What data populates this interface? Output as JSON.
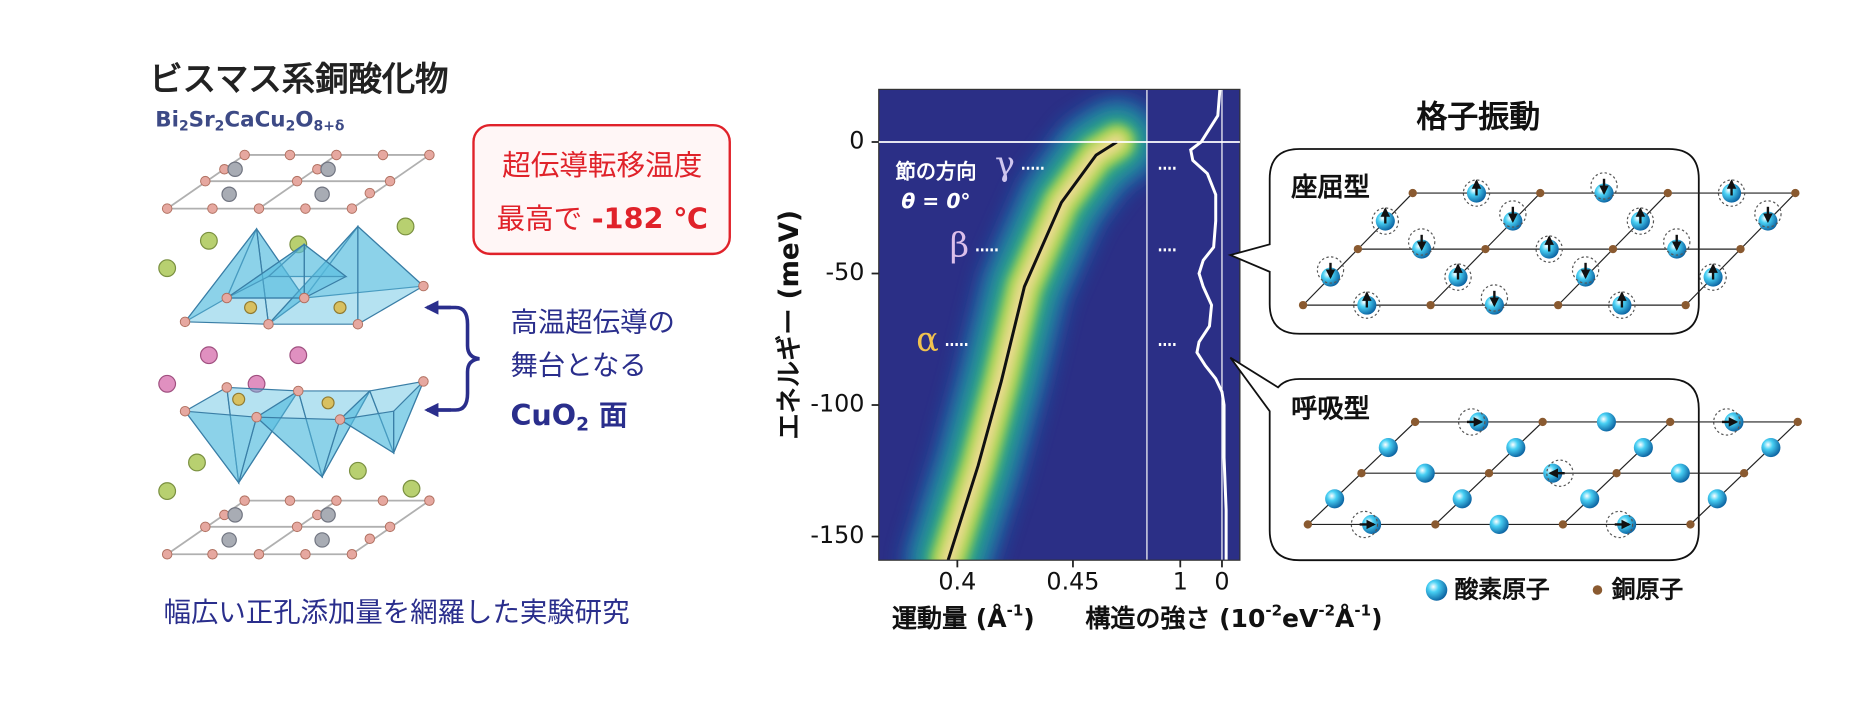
{
  "structure": {
    "title": "ビスマス系銅酸化物",
    "formula": [
      "Bi",
      "2",
      "Sr",
      "2",
      "CaCu",
      "2",
      "O",
      "8+δ"
    ],
    "tc_label": "超伝導転移温度",
    "tc_prefix": "最高で",
    "tc_value": "-182 ℃",
    "plane_lines": [
      "高温超伝導の",
      "舞台となる"
    ],
    "plane_label": [
      "CuO",
      "2",
      " 面"
    ],
    "caption": "幅広い正孔添加量を網羅した実験研究"
  },
  "chart_data": [
    {
      "type": "heatmap",
      "ylabel": "エネルギー (meV)",
      "xlabel": [
        "運動量 (Å",
        "-1",
        ")"
      ],
      "xlim": [
        0.366,
        0.482
      ],
      "ylim": [
        -159,
        20
      ],
      "xticks": [
        0.4,
        0.45
      ],
      "yticks": [
        0,
        -50,
        -100,
        -150
      ],
      "annotation": [
        "節の方向",
        "θ = 0°"
      ],
      "colors": [
        "#1f78b8",
        "#2fb27a",
        "#b9d94c",
        "#f3dc98"
      ],
      "line_color": "#111111",
      "dispersion": {
        "x": [
          0.396,
          0.409,
          0.419,
          0.429,
          0.445,
          0.46,
          0.469
        ],
        "y": [
          -159,
          -123,
          -91,
          -55,
          -23,
          -5,
          0
        ]
      },
      "modes": [
        {
          "label": "γ",
          "energy": -10,
          "color": "#cfc6ee"
        },
        {
          "label": "β",
          "energy": -41,
          "color": "#dcbfea"
        },
        {
          "label": "α",
          "energy": -77,
          "color": "#f1c24e"
        }
      ]
    },
    {
      "type": "line",
      "xlabel": [
        "構造の強さ (10",
        "-2",
        "eV",
        "-2",
        "Å",
        "-1",
        ")"
      ],
      "xlim": [
        1.8,
        -0.43
      ],
      "ylim": [
        -159,
        20
      ],
      "xticks": [
        1,
        0
      ],
      "color": "#ffffff",
      "energy": [
        20,
        10,
        5,
        0,
        -3,
        -7,
        -12,
        -20,
        -30,
        -40,
        -45,
        -50,
        -55,
        -62,
        -70,
        -76,
        -80,
        -85,
        -90,
        -95,
        -100,
        -120,
        -140,
        -159
      ],
      "values": [
        0.05,
        0.1,
        0.3,
        0.5,
        0.75,
        0.7,
        0.35,
        0.15,
        0.15,
        0.2,
        0.45,
        0.55,
        0.45,
        0.25,
        0.3,
        0.55,
        0.6,
        0.4,
        0.15,
        0.0,
        -0.05,
        -0.05,
        -0.1,
        -0.1
      ]
    }
  ],
  "phonons": {
    "title": "格子振動",
    "buckling": "座屈型",
    "breathing": "呼吸型",
    "legend": [
      "酸素原子",
      "銅原子"
    ]
  }
}
